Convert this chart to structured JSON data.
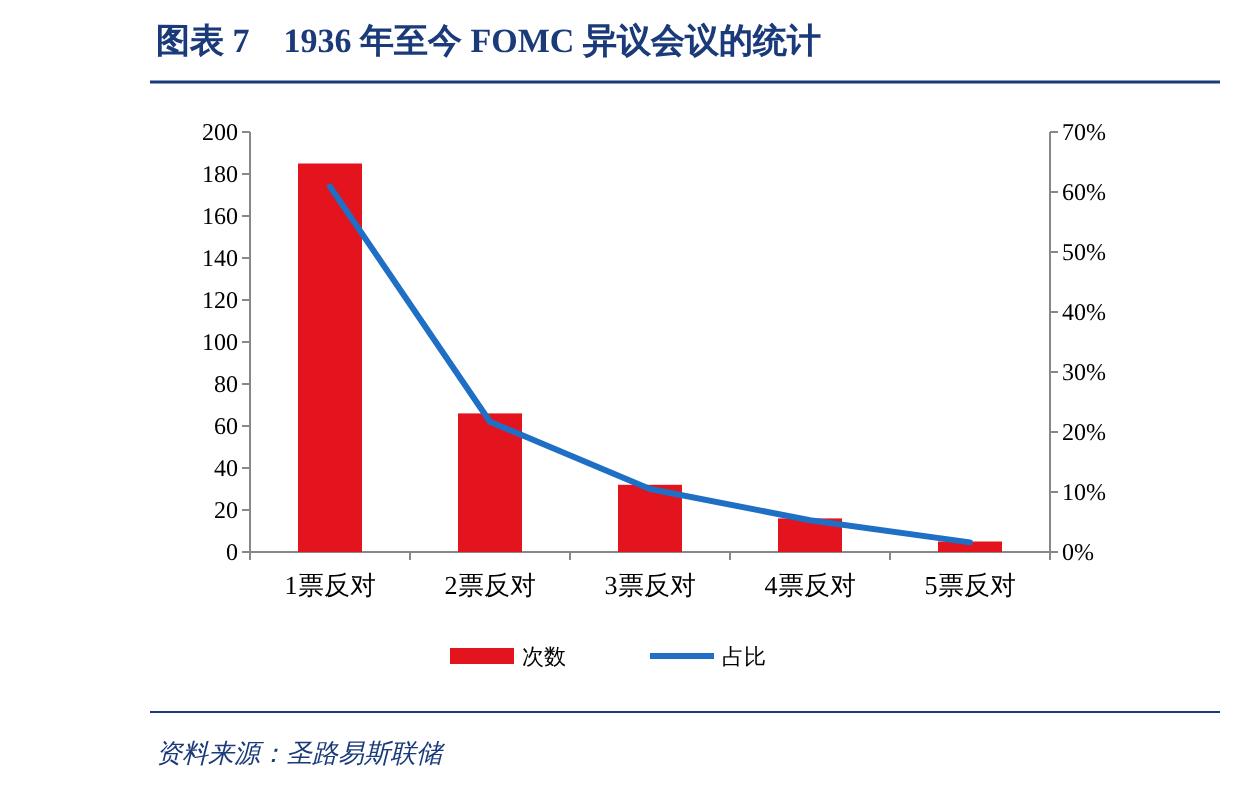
{
  "chart_data": {
    "type": "bar",
    "title": "图表 7　1936 年至今 FOMC 异议会议的统计",
    "categories": [
      "1票反对",
      "2票反对",
      "3票反对",
      "4票反对",
      "5票反对"
    ],
    "series": [
      {
        "name": "次数",
        "color": "#e3141d",
        "values": [
          185,
          66,
          32,
          16,
          5
        ]
      },
      {
        "name": "占比",
        "type": "line",
        "axis": "y2",
        "color": "#1f6fc5",
        "values": [
          60.9,
          21.7,
          10.5,
          5.3,
          1.6
        ]
      }
    ],
    "ylim": [
      0,
      200
    ],
    "yticks": [
      0,
      20,
      40,
      60,
      80,
      100,
      120,
      140,
      160,
      180,
      200
    ],
    "y2lim": [
      0,
      70
    ],
    "y2ticks": [
      {
        "value": 0,
        "label": "0%"
      },
      {
        "value": 10,
        "label": "10%"
      },
      {
        "value": 20,
        "label": "20%"
      },
      {
        "value": 30,
        "label": "30%"
      },
      {
        "value": 40,
        "label": "40%"
      },
      {
        "value": 50,
        "label": "50%"
      },
      {
        "value": 60,
        "label": "60%"
      },
      {
        "value": 70,
        "label": "70%"
      }
    ],
    "legend": "bottom",
    "grid": false,
    "annotations": [
      "资料来源：圣路易斯联储"
    ]
  }
}
